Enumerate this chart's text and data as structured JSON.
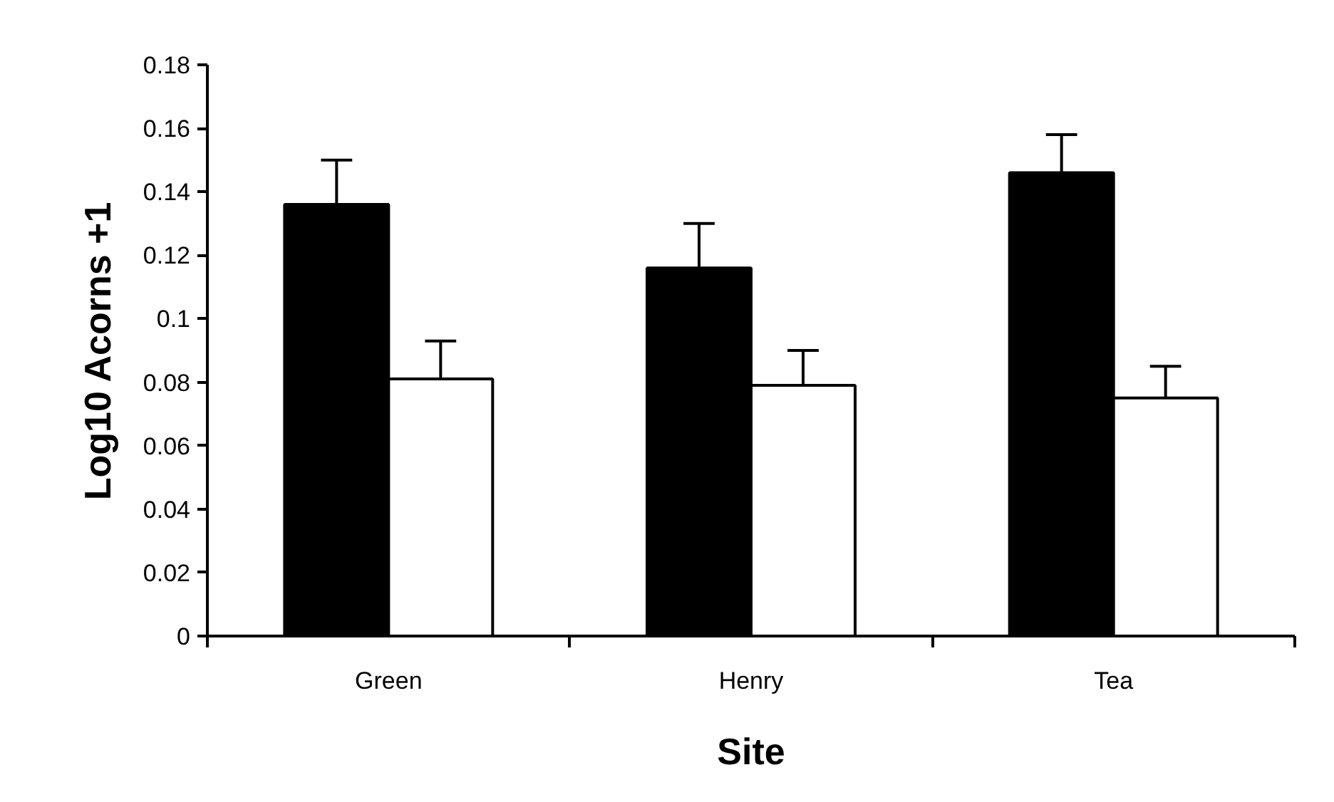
{
  "chart_data": {
    "type": "bar",
    "xlabel": "Site",
    "ylabel": "Log10 Acorns +1",
    "categories": [
      "Green",
      "Henry",
      "Tea"
    ],
    "series": [
      {
        "color": "#000000",
        "values": [
          0.136,
          0.116,
          0.146
        ],
        "errors": [
          [
            0.136,
            0.15
          ],
          [
            0.116,
            0.13
          ],
          [
            0.146,
            0.158
          ]
        ]
      },
      {
        "color": "#ffffff",
        "values": [
          0.081,
          0.079,
          0.075
        ],
        "errors": [
          [
            0.081,
            0.093
          ],
          [
            0.079,
            0.09
          ],
          [
            0.075,
            0.085
          ]
        ]
      }
    ],
    "ylim": [
      0,
      0.18
    ],
    "yticks": [
      0,
      0.02,
      0.04,
      0.06,
      0.08,
      {
        "value": 0.1,
        "label": "0.1"
      },
      0.12,
      0.14,
      0.16,
      0.18
    ],
    "grid": false
  }
}
